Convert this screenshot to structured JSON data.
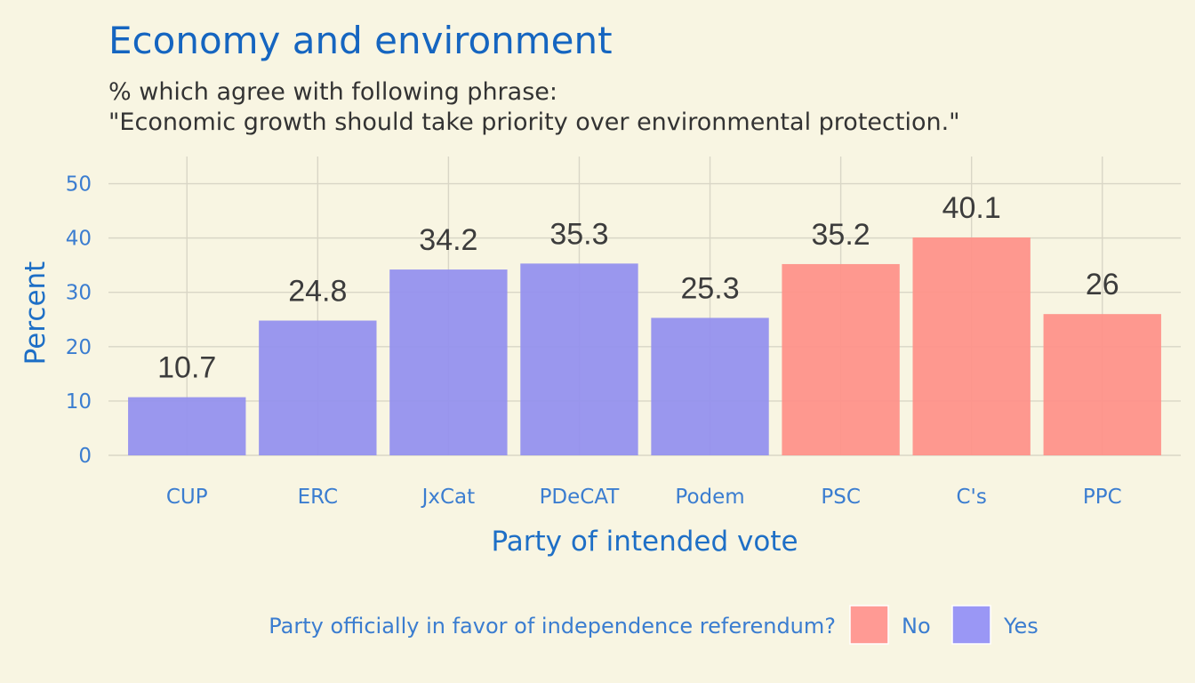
{
  "chart_data": {
    "type": "bar",
    "title": "Economy and environment",
    "subtitle_lines": [
      "% which agree with following phrase:",
      "\"Economic growth should take priority over environmental protection.\""
    ],
    "xlabel": "Party of intended vote",
    "ylabel": "Percent",
    "ylim": [
      0,
      55
    ],
    "yticks": [
      0,
      10,
      20,
      30,
      40,
      50
    ],
    "grid": true,
    "categories": [
      "CUP",
      "ERC",
      "JxCat",
      "PDeCAT",
      "Podem",
      "PSC",
      "C's",
      "PPC"
    ],
    "values": [
      10.7,
      24.8,
      34.2,
      35.3,
      25.3,
      35.2,
      40.1,
      26
    ],
    "value_labels": [
      "10.7",
      "24.8",
      "34.2",
      "35.3",
      "25.3",
      "35.2",
      "40.1",
      "26"
    ],
    "groups": [
      "Yes",
      "Yes",
      "Yes",
      "Yes",
      "Yes",
      "No",
      "No",
      "No"
    ],
    "legend": {
      "title": "Party officially in favor of independence referendum?",
      "placement": "bottom",
      "entries": [
        {
          "label": "No",
          "color": "#ff9a94"
        },
        {
          "label": "Yes",
          "color": "#9a97f5"
        }
      ]
    },
    "colors": {
      "No": "#fe928a",
      "Yes": "#9591ee"
    }
  }
}
